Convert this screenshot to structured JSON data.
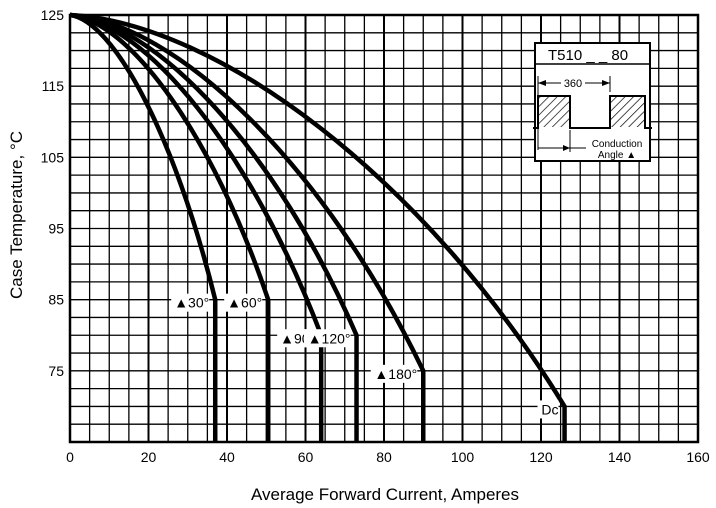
{
  "chart_data": {
    "type": "line",
    "xlabel": "Average Forward Current, Amperes",
    "ylabel": "Case Temperature, °C",
    "xlim": [
      0,
      160
    ],
    "ylim": [
      65,
      125
    ],
    "x_ticks": [
      0,
      20,
      40,
      60,
      80,
      100,
      120,
      140,
      160
    ],
    "y_ticks": [
      75,
      85,
      95,
      105,
      115,
      125
    ],
    "grid": true,
    "series": [
      {
        "name": "▲30°",
        "x": [
          0,
          37,
          37
        ],
        "y": [
          125,
          85,
          65
        ]
      },
      {
        "name": "▲60°",
        "x": [
          0,
          50.5,
          50.5
        ],
        "y": [
          125,
          85,
          65
        ]
      },
      {
        "name": "▲90°",
        "x": [
          0,
          64,
          64
        ],
        "y": [
          125,
          80,
          65
        ]
      },
      {
        "name": "▲120°",
        "x": [
          0,
          73,
          73
        ],
        "y": [
          125,
          80,
          65
        ]
      },
      {
        "name": "▲180°",
        "x": [
          0,
          90,
          90
        ],
        "y": [
          125,
          75,
          65
        ]
      },
      {
        "name": "Dc",
        "x": [
          0,
          126,
          126
        ],
        "y": [
          125,
          70,
          65
        ]
      }
    ],
    "inset": {
      "title": "T510 _ _ 80",
      "period_label": "360",
      "conduction_label_1": "Conduction",
      "conduction_label_2": "Angle ▲"
    }
  }
}
